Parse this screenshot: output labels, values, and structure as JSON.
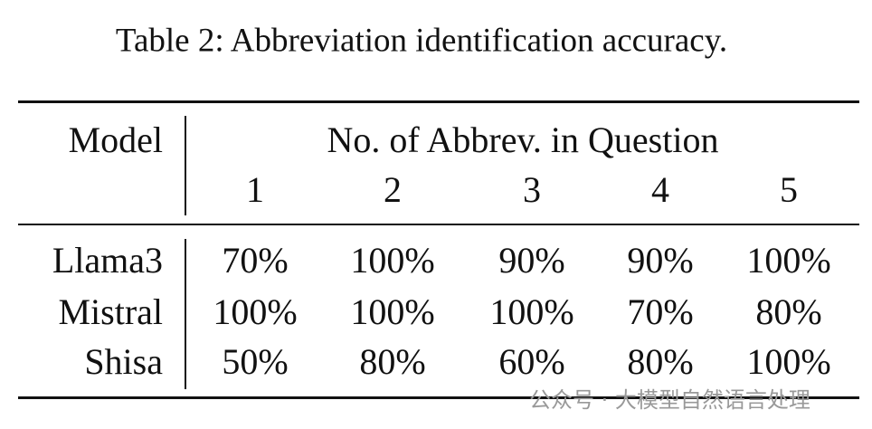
{
  "caption": "Table 2: Abbreviation identification accuracy.",
  "table": {
    "header": {
      "model": "Model",
      "group": "No. of Abbrev. in Question",
      "columns": [
        "1",
        "2",
        "3",
        "4",
        "5"
      ]
    },
    "rows": [
      {
        "model": "Llama3",
        "cells": [
          "70%",
          "100%",
          "90%",
          "90%",
          "100%"
        ]
      },
      {
        "model": "Mistral",
        "cells": [
          "100%",
          "100%",
          "100%",
          "70%",
          "80%"
        ]
      },
      {
        "model": "Shisa",
        "cells": [
          "50%",
          "80%",
          "60%",
          "80%",
          "100%"
        ]
      }
    ]
  },
  "watermark": "公众号 · 大模型自然语言处理"
}
